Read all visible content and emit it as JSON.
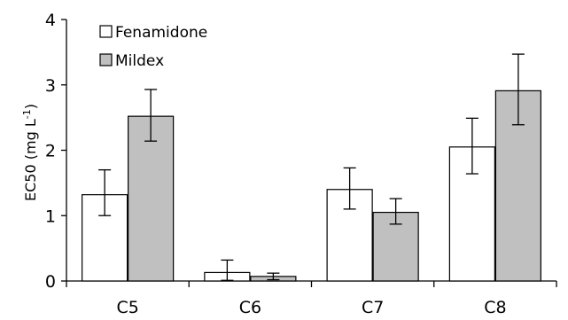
{
  "chart_data": {
    "type": "bar",
    "categories": [
      "C5",
      "C6",
      "C7",
      "C8"
    ],
    "series": [
      {
        "name": "Fenamidone",
        "color": "#ffffff",
        "values": [
          1.32,
          0.13,
          1.4,
          2.05
        ],
        "error_low": [
          1.0,
          0.01,
          1.1,
          1.64
        ],
        "error_high": [
          1.7,
          0.32,
          1.73,
          2.49
        ]
      },
      {
        "name": "Mildex",
        "color": "#c0c0c0",
        "values": [
          2.52,
          0.07,
          1.05,
          2.91
        ],
        "error_low": [
          2.14,
          0.02,
          0.87,
          2.39
        ],
        "error_high": [
          2.93,
          0.12,
          1.26,
          3.47
        ]
      }
    ],
    "title": "",
    "xlabel": "",
    "ylabel": "EC50 (mg L",
    "ylabel_superscript": "-1",
    "ylabel_suffix": ")",
    "ylim": [
      0,
      4
    ],
    "yticks": [
      "0",
      "1",
      "2",
      "3",
      "4"
    ],
    "grid": false,
    "legend": "top-left"
  }
}
